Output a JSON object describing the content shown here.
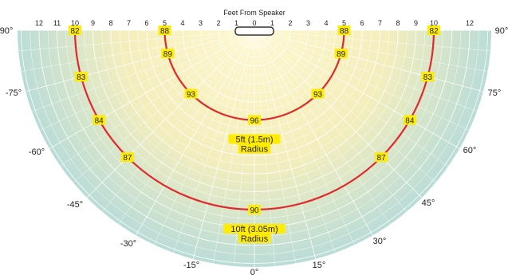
{
  "colors": {
    "outer": "#a8d6df",
    "inner": "#fdf7cc",
    "grid": "#ffffff",
    "contour": "#e2282c",
    "label_box": "#ffec00",
    "speaker_fill": "#ffffff",
    "speaker_stroke": "#333333"
  },
  "diagram": {
    "title": "Feet From Speaker",
    "feet_ticks": [
      "12",
      "11",
      "10",
      "9",
      "8",
      "7",
      "6",
      "5",
      "4",
      "3",
      "2",
      "1",
      "0",
      "1",
      "2",
      "3",
      "4",
      "5",
      "6",
      "7",
      "8",
      "9",
      "10",
      "12"
    ],
    "angle_labels": [
      "90°",
      "-75°",
      "-60°",
      "-45°",
      "-30°",
      "-15°",
      "0°",
      "15°",
      "30°",
      "45°",
      "60°",
      "75°",
      "90°"
    ],
    "contours": [
      {
        "radius_ft": 5,
        "radius_label": [
          "5ft (1.5m)",
          "Radius"
        ],
        "spl_labels": [
          {
            "angle_deg": -90,
            "value": "88"
          },
          {
            "angle_deg": -75,
            "value": "89"
          },
          {
            "angle_deg": -45,
            "value": "93"
          },
          {
            "angle_deg": 0,
            "value": "96"
          },
          {
            "angle_deg": 45,
            "value": "93"
          },
          {
            "angle_deg": 75,
            "value": "89"
          },
          {
            "angle_deg": 90,
            "value": "88"
          }
        ]
      },
      {
        "radius_ft": 10,
        "radius_label": [
          "10ft (3.05m)",
          "Radius"
        ],
        "spl_labels": [
          {
            "angle_deg": -90,
            "value": "82"
          },
          {
            "angle_deg": -75,
            "value": "83"
          },
          {
            "angle_deg": -60,
            "value": "84"
          },
          {
            "angle_deg": -45,
            "value": "87"
          },
          {
            "angle_deg": 0,
            "value": "90"
          },
          {
            "angle_deg": 45,
            "value": "87"
          },
          {
            "angle_deg": 60,
            "value": "84"
          },
          {
            "angle_deg": 75,
            "value": "83"
          },
          {
            "angle_deg": 90,
            "value": "82"
          }
        ]
      }
    ]
  }
}
